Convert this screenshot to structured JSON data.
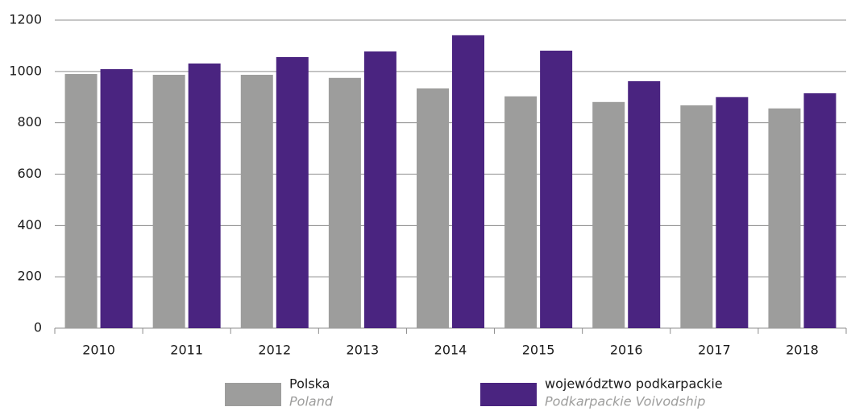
{
  "chart_data": {
    "type": "bar",
    "categories": [
      "2010",
      "2011",
      "2012",
      "2013",
      "2014",
      "2015",
      "2016",
      "2017",
      "2018"
    ],
    "series": [
      {
        "name": "Polska",
        "name_en": "Poland",
        "color": "#9d9d9c",
        "values": [
          990,
          987,
          987,
          975,
          934,
          903,
          881,
          868,
          856
        ]
      },
      {
        "name": "województwo podkarpackie",
        "name_en": "Podkarpackie Voivodship",
        "color": "#4a2480",
        "values": [
          1009,
          1031,
          1056,
          1078,
          1141,
          1081,
          962,
          900,
          915
        ]
      }
    ],
    "ylim": [
      0,
      1200
    ],
    "yticks": [
      0,
      200,
      400,
      600,
      800,
      1000,
      1200
    ],
    "grid": true,
    "legend": "bottom"
  }
}
